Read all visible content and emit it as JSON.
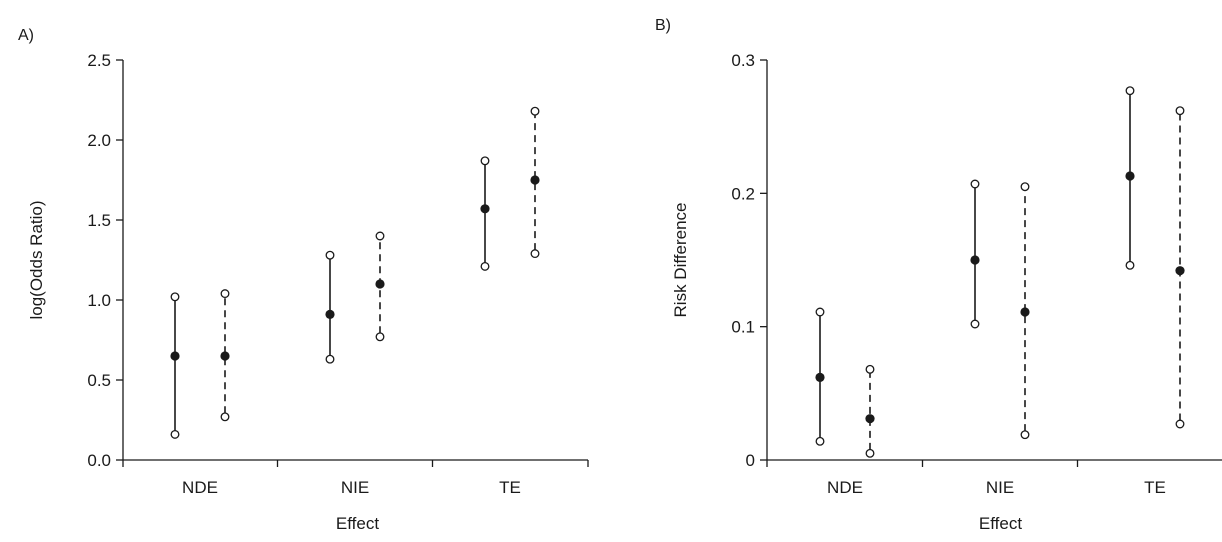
{
  "chart_data": [
    {
      "type": "errorbar",
      "panel_label": "A)",
      "xlabel": "Effect",
      "ylabel": "log(Odds Ratio)",
      "categories": [
        "NDE",
        "NIE",
        "TE"
      ],
      "ylim": [
        0,
        2.5
      ],
      "yticks": [
        "0.0",
        "0.5",
        "1.0",
        "1.5",
        "2.0",
        "2.5"
      ],
      "series": [
        {
          "line_style": "solid",
          "estimate": [
            0.65,
            0.91,
            1.57
          ],
          "lower": [
            0.16,
            0.63,
            1.21
          ],
          "upper": [
            1.02,
            1.28,
            1.87
          ]
        },
        {
          "line_style": "dashed",
          "estimate": [
            0.65,
            1.1,
            1.75
          ],
          "lower": [
            0.27,
            0.77,
            1.29
          ],
          "upper": [
            1.04,
            1.4,
            2.18
          ]
        }
      ]
    },
    {
      "type": "errorbar",
      "panel_label": "B)",
      "xlabel": "Effect",
      "ylabel": "Risk Difference",
      "categories": [
        "NDE",
        "NIE",
        "TE"
      ],
      "ylim": [
        0,
        0.3
      ],
      "yticks": [
        "0",
        "0.1",
        "0.2",
        "0.3"
      ],
      "series": [
        {
          "line_style": "solid",
          "estimate": [
            0.062,
            0.15,
            0.213
          ],
          "lower": [
            0.014,
            0.102,
            0.146
          ],
          "upper": [
            0.111,
            0.207,
            0.277
          ]
        },
        {
          "line_style": "dashed",
          "estimate": [
            0.031,
            0.111,
            0.142
          ],
          "lower": [
            0.005,
            0.019,
            0.027
          ],
          "upper": [
            0.068,
            0.205,
            0.262
          ]
        }
      ]
    }
  ]
}
